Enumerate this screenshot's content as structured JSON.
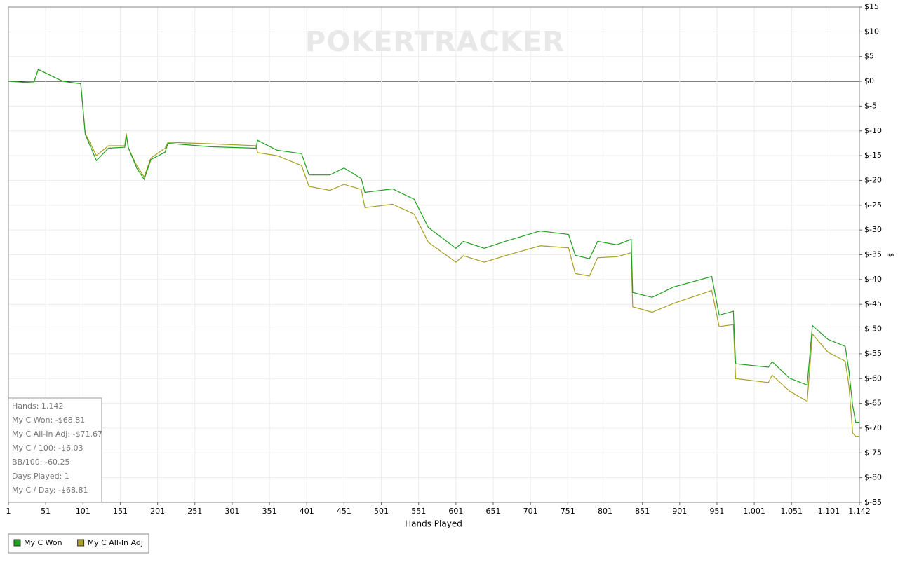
{
  "chart_data": {
    "type": "line",
    "watermark": "POKERTRACKER",
    "xlabel": "Hands Played",
    "ylabel": "$",
    "x": [
      1,
      35,
      41,
      60,
      74,
      98,
      104,
      119,
      135,
      157,
      159,
      162,
      173,
      183,
      192,
      211,
      215,
      272,
      333,
      335,
      361,
      394,
      404,
      432,
      451,
      474,
      479,
      516,
      545,
      564,
      601,
      611,
      639,
      667,
      714,
      752,
      761,
      780,
      791,
      817,
      836,
      838,
      864,
      893,
      944,
      954,
      973,
      976,
      1020,
      1025,
      1048,
      1072,
      1079,
      1100,
      1123,
      1128,
      1133,
      1137,
      1142
    ],
    "series": [
      {
        "name": "My C Won",
        "color": "#20a020",
        "values": [
          0,
          -0.3,
          2.4,
          1,
          0,
          -0.5,
          -10.7,
          -16,
          -13.5,
          -13.3,
          -11,
          -13.5,
          -17.5,
          -19.8,
          -15.8,
          -14.3,
          -12.5,
          -13.2,
          -13.5,
          -11.9,
          -13.9,
          -14.6,
          -18.9,
          -18.9,
          -17.5,
          -19.6,
          -22.4,
          -21.7,
          -23.8,
          -29.5,
          -33.7,
          -32.3,
          -33.7,
          -32.3,
          -30.2,
          -30.9,
          -35.1,
          -35.8,
          -32.3,
          -33,
          -31.9,
          -42.6,
          -43.6,
          -41.5,
          -39.4,
          -47.2,
          -46.4,
          -57,
          -57.7,
          -56.6,
          -59.9,
          -61.3,
          -49.3,
          -52.1,
          -53.5,
          -58.5,
          -65.5,
          -68.81,
          -68.81
        ]
      },
      {
        "name": "My C All-In Adj",
        "color": "#a8a020",
        "values": [
          0,
          -0.3,
          2.4,
          1,
          0,
          -0.5,
          -10.5,
          -15,
          -13,
          -13,
          -10.5,
          -13.5,
          -17,
          -19.3,
          -15.5,
          -13.5,
          -12.3,
          -12.6,
          -13,
          -14.4,
          -15,
          -17,
          -21.2,
          -22,
          -20.8,
          -21.8,
          -25.5,
          -24.8,
          -26.8,
          -32.5,
          -36.5,
          -35.2,
          -36.5,
          -35.2,
          -33.2,
          -33.6,
          -38.8,
          -39.3,
          -35.6,
          -35.4,
          -34.6,
          -45.5,
          -46.6,
          -44.8,
          -42.2,
          -49.5,
          -49.1,
          -60,
          -60.8,
          -59.3,
          -62.5,
          -64.6,
          -51,
          -54.7,
          -56.5,
          -61.5,
          -71,
          -71.67,
          -71.67
        ]
      }
    ],
    "xlim": [
      1,
      1142
    ],
    "xticks": [
      1,
      51,
      101,
      151,
      201,
      251,
      301,
      351,
      401,
      451,
      501,
      551,
      601,
      651,
      701,
      751,
      801,
      851,
      901,
      951,
      {
        "value": 1001,
        "label": "1,001"
      },
      {
        "value": 1051,
        "label": "1,051"
      },
      {
        "value": 1101,
        "label": "1,101"
      },
      {
        "value": 1142,
        "label": "1,142"
      }
    ],
    "ylim": [
      -85,
      15
    ],
    "yticks": [
      {
        "value": 15,
        "label": "$15"
      },
      {
        "value": 10,
        "label": "$10"
      },
      {
        "value": 5,
        "label": "$5"
      },
      {
        "value": 0,
        "label": "$0"
      },
      {
        "value": -5,
        "label": "$-5"
      },
      {
        "value": -10,
        "label": "$-10"
      },
      {
        "value": -15,
        "label": "$-15"
      },
      {
        "value": -20,
        "label": "$-20"
      },
      {
        "value": -25,
        "label": "$-25"
      },
      {
        "value": -30,
        "label": "$-30"
      },
      {
        "value": -35,
        "label": "$-35"
      },
      {
        "value": -40,
        "label": "$-40"
      },
      {
        "value": -45,
        "label": "$-45"
      },
      {
        "value": -50,
        "label": "$-50"
      },
      {
        "value": -55,
        "label": "$-55"
      },
      {
        "value": -60,
        "label": "$-60"
      },
      {
        "value": -65,
        "label": "$-65"
      },
      {
        "value": -70,
        "label": "$-70"
      },
      {
        "value": -75,
        "label": "$-75"
      },
      {
        "value": -80,
        "label": "$-80"
      },
      {
        "value": -85,
        "label": "$-85"
      }
    ],
    "grid": true,
    "stats": [
      "Hands: 1,142",
      "My C Won: -$68.81",
      "My C All-In Adj: -$71.67",
      "My C / 100: -$6.03",
      "BB/100: -60.25",
      "Days Played: 1",
      "My C / Day: -$68.81"
    ]
  }
}
